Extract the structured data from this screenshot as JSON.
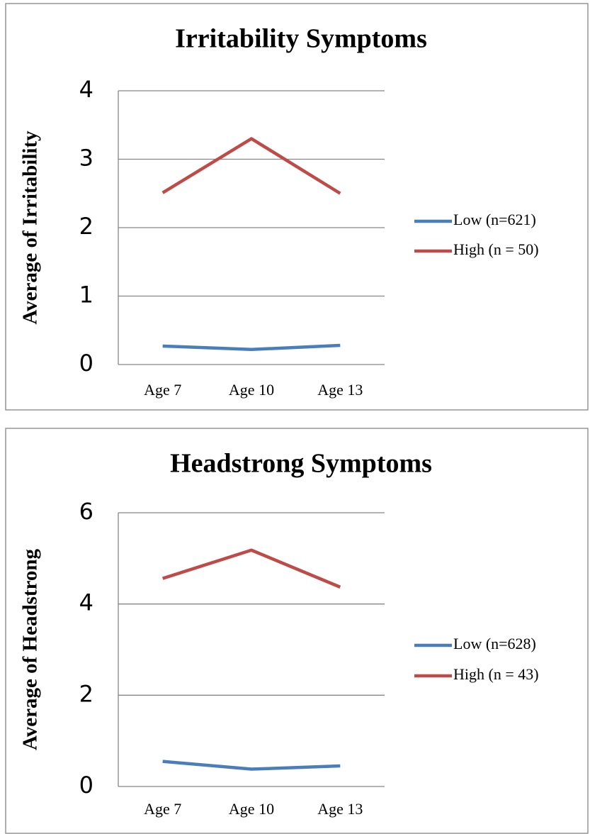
{
  "chart_data": [
    {
      "type": "line",
      "title": "Irritability Symptoms",
      "y_label": "Average  of Irritability",
      "categories": [
        "Age 7",
        "Age 10",
        "Age 13"
      ],
      "series": [
        {
          "name": "Low (n=621)",
          "color": "#4a7ebb",
          "values": [
            0.27,
            0.22,
            0.28
          ]
        },
        {
          "name": "High (n = 50)",
          "color": "#be4b48",
          "values": [
            2.51,
            3.3,
            2.5
          ]
        }
      ],
      "ylim": [
        0,
        4
      ],
      "yticks": [
        0,
        1,
        2,
        3,
        4
      ],
      "grid": true,
      "legend": "right"
    },
    {
      "type": "line",
      "title": "Headstrong Symptoms",
      "y_label": "Average of Headstrong",
      "categories": [
        "Age 7",
        "Age 10",
        "Age 13"
      ],
      "series": [
        {
          "name": "Low (n=628)",
          "color": "#4a7ebb",
          "values": [
            0.55,
            0.38,
            0.45
          ]
        },
        {
          "name": "High (n = 43)",
          "color": "#be4b48",
          "values": [
            4.56,
            5.18,
            4.37
          ]
        }
      ],
      "ylim": [
        0,
        6
      ],
      "yticks": [
        0,
        2,
        4,
        6
      ],
      "grid": true,
      "legend": "right"
    }
  ]
}
